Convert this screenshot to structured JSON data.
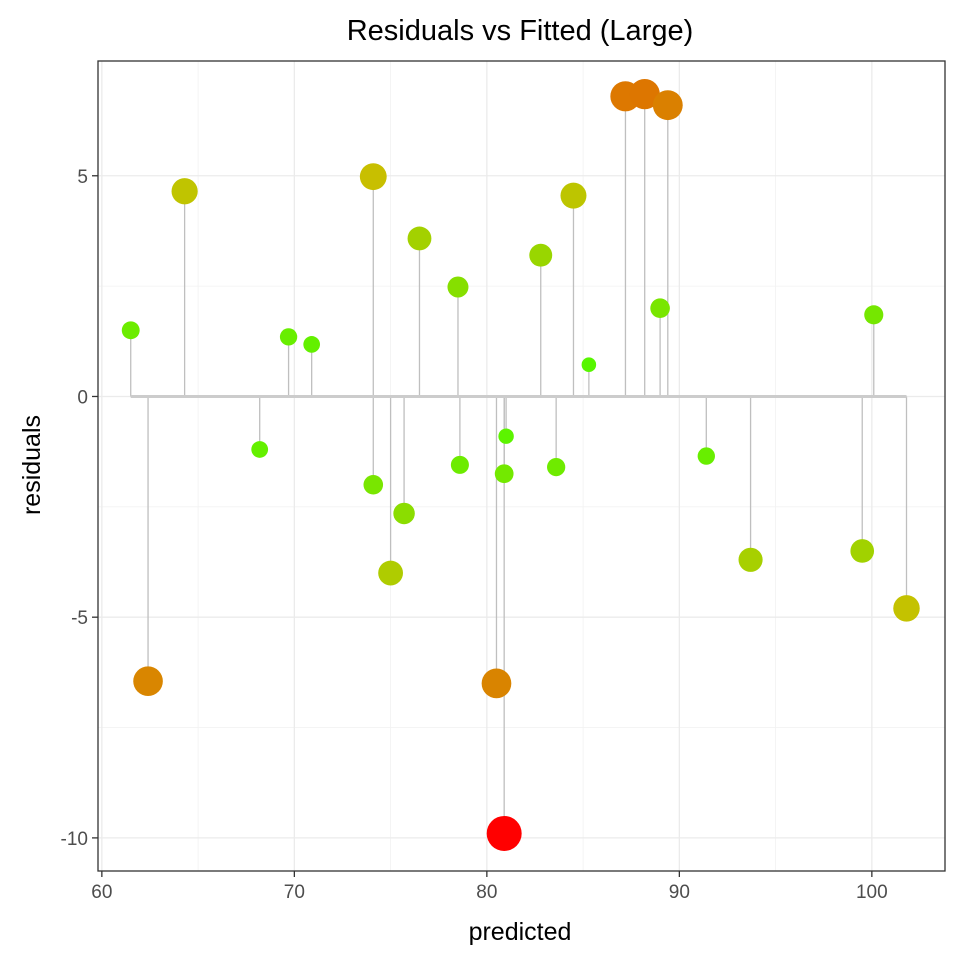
{
  "chart_data": {
    "type": "scatter",
    "title": "Residuals vs Fitted (Large)",
    "xlabel": "predicted",
    "ylabel": "residuals",
    "xlim": [
      59.8,
      103.8
    ],
    "ylim": [
      -10.75,
      7.6
    ],
    "x_ticks": [
      60,
      70,
      80,
      90,
      100
    ],
    "x_tick_labels": [
      "60",
      "70",
      "80",
      "90",
      "100"
    ],
    "y_ticks": [
      -10,
      -5,
      0,
      5
    ],
    "y_tick_labels": [
      "-10",
      "-5",
      "0",
      "5"
    ],
    "grid": true,
    "stems_to_zero": true,
    "color_scale": {
      "low": "#44ff00",
      "mid": "#c8c000",
      "high": "#ff0000"
    },
    "points": [
      {
        "x": 61.5,
        "y": 1.5
      },
      {
        "x": 62.4,
        "y": -6.45
      },
      {
        "x": 64.3,
        "y": 4.65
      },
      {
        "x": 68.2,
        "y": -1.2
      },
      {
        "x": 69.7,
        "y": 1.35
      },
      {
        "x": 70.9,
        "y": 1.18
      },
      {
        "x": 74.1,
        "y": 4.98
      },
      {
        "x": 74.1,
        "y": -2.0
      },
      {
        "x": 75.0,
        "y": -4.0
      },
      {
        "x": 75.7,
        "y": -2.65
      },
      {
        "x": 76.5,
        "y": 3.58
      },
      {
        "x": 78.5,
        "y": 2.48
      },
      {
        "x": 78.6,
        "y": -1.55
      },
      {
        "x": 80.5,
        "y": -6.5
      },
      {
        "x": 80.9,
        "y": -9.9
      },
      {
        "x": 80.9,
        "y": -1.75
      },
      {
        "x": 81.0,
        "y": -0.9
      },
      {
        "x": 82.8,
        "y": 3.2
      },
      {
        "x": 83.6,
        "y": -1.6
      },
      {
        "x": 84.5,
        "y": 4.55
      },
      {
        "x": 85.3,
        "y": 0.72
      },
      {
        "x": 87.2,
        "y": 6.8
      },
      {
        "x": 88.2,
        "y": 6.85
      },
      {
        "x": 89.0,
        "y": 2.0
      },
      {
        "x": 89.4,
        "y": 6.6
      },
      {
        "x": 91.4,
        "y": -1.35
      },
      {
        "x": 93.7,
        "y": -3.7
      },
      {
        "x": 99.5,
        "y": -3.5
      },
      {
        "x": 100.1,
        "y": 1.85
      },
      {
        "x": 101.8,
        "y": -4.8
      }
    ]
  }
}
